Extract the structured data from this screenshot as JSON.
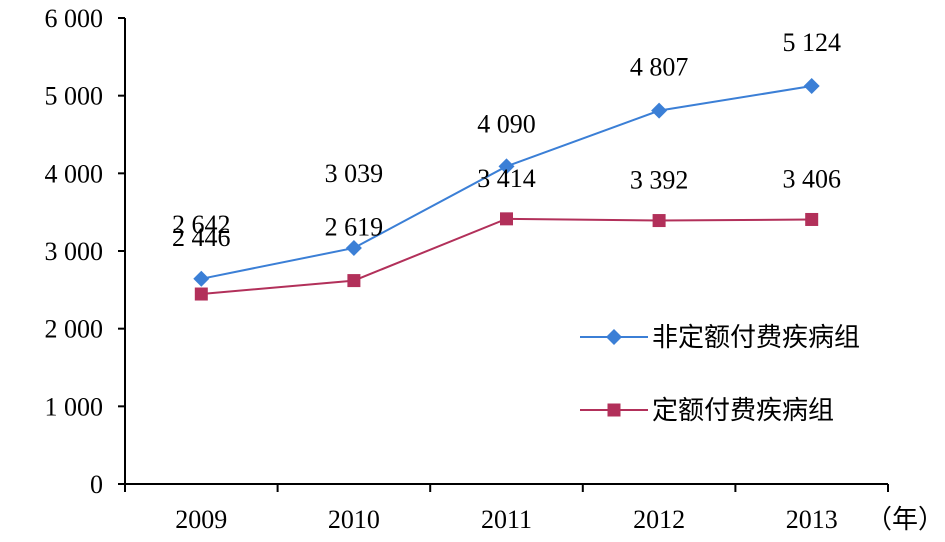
{
  "chart_data": {
    "type": "line",
    "categories": [
      "2009",
      "2010",
      "2011",
      "2012",
      "2013"
    ],
    "x_unit": "（年）",
    "ylim": [
      0,
      6000
    ],
    "yticks": [
      0,
      1000,
      2000,
      3000,
      4000,
      5000,
      6000
    ],
    "ytick_labels": [
      "0",
      "1 000",
      "2 000",
      "3 000",
      "4 000",
      "5 000",
      "6 000"
    ],
    "grid": false,
    "legend_position": "right",
    "series": [
      {
        "name": "非定额付费疾病组",
        "values": [
          2642,
          3039,
          4090,
          4807,
          5124
        ],
        "labels": [
          "2 642",
          "3 039",
          "4 090",
          "4 807",
          "5 124"
        ],
        "color": "#3b7fd6",
        "marker": "diamond"
      },
      {
        "name": "定额付费疾病组",
        "values": [
          2446,
          2619,
          3414,
          3392,
          3406
        ],
        "labels": [
          "2 446",
          "2 619",
          "3 414",
          "3 392",
          "3 406"
        ],
        "color": "#b2305a",
        "marker": "square"
      }
    ]
  }
}
